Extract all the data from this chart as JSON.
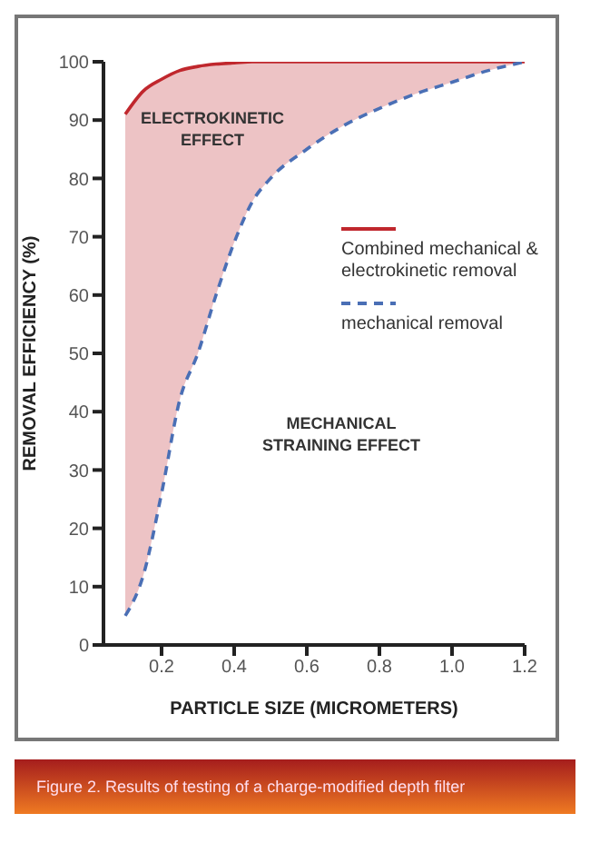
{
  "chart_data": {
    "type": "line",
    "xlabel": "PARTICLE SIZE (MICROMETERS)",
    "ylabel": "REMOVAL EFFICIENCY (%)",
    "x": [
      0.1,
      0.15,
      0.2,
      0.25,
      0.3,
      0.35,
      0.4,
      0.45,
      0.5,
      0.6,
      0.7,
      0.8,
      0.9,
      1.0,
      1.1,
      1.2
    ],
    "series": [
      {
        "name": "Combined mechanical & electrokinetic removal",
        "color": "#c0272d",
        "line_style": "solid",
        "values": [
          91,
          95,
          97,
          98.5,
          99.2,
          99.6,
          99.8,
          100,
          100,
          100,
          100,
          100,
          100,
          100,
          100,
          100
        ],
        "lower": [
          5,
          12,
          26,
          42,
          50,
          60,
          69,
          76,
          80,
          85,
          89,
          92,
          94.5,
          96.5,
          98.5,
          100
        ],
        "upper": [
          91,
          95,
          97,
          98.5,
          99.2,
          99.6,
          99.8,
          100,
          100,
          100,
          100,
          100,
          100,
          100,
          100,
          100
        ]
      },
      {
        "name": "mechanical removal",
        "color": "#4a6fb5",
        "line_style": "dashed",
        "values": [
          5,
          12,
          26,
          42,
          50,
          60,
          69,
          76,
          80,
          85,
          89,
          92,
          94.5,
          96.5,
          98.5,
          100
        ]
      }
    ],
    "xlim": [
      0.04,
      1.2
    ],
    "xticks": [
      0.2,
      0.4,
      0.6,
      0.8,
      {
        "value": 1.0,
        "label": "1.0"
      },
      1.2
    ],
    "ylim": [
      0,
      100
    ],
    "yticks": [
      0,
      10,
      20,
      30,
      40,
      50,
      60,
      70,
      80,
      90,
      100
    ],
    "grid": false,
    "legend": "right",
    "marker": "none",
    "annotations": [
      "ELECTROKINETIC EFFECT",
      "MECHANICAL STRAINING EFFECT",
      "Figure 2.  Results of testing of a charge-modified depth filter"
    ]
  }
}
